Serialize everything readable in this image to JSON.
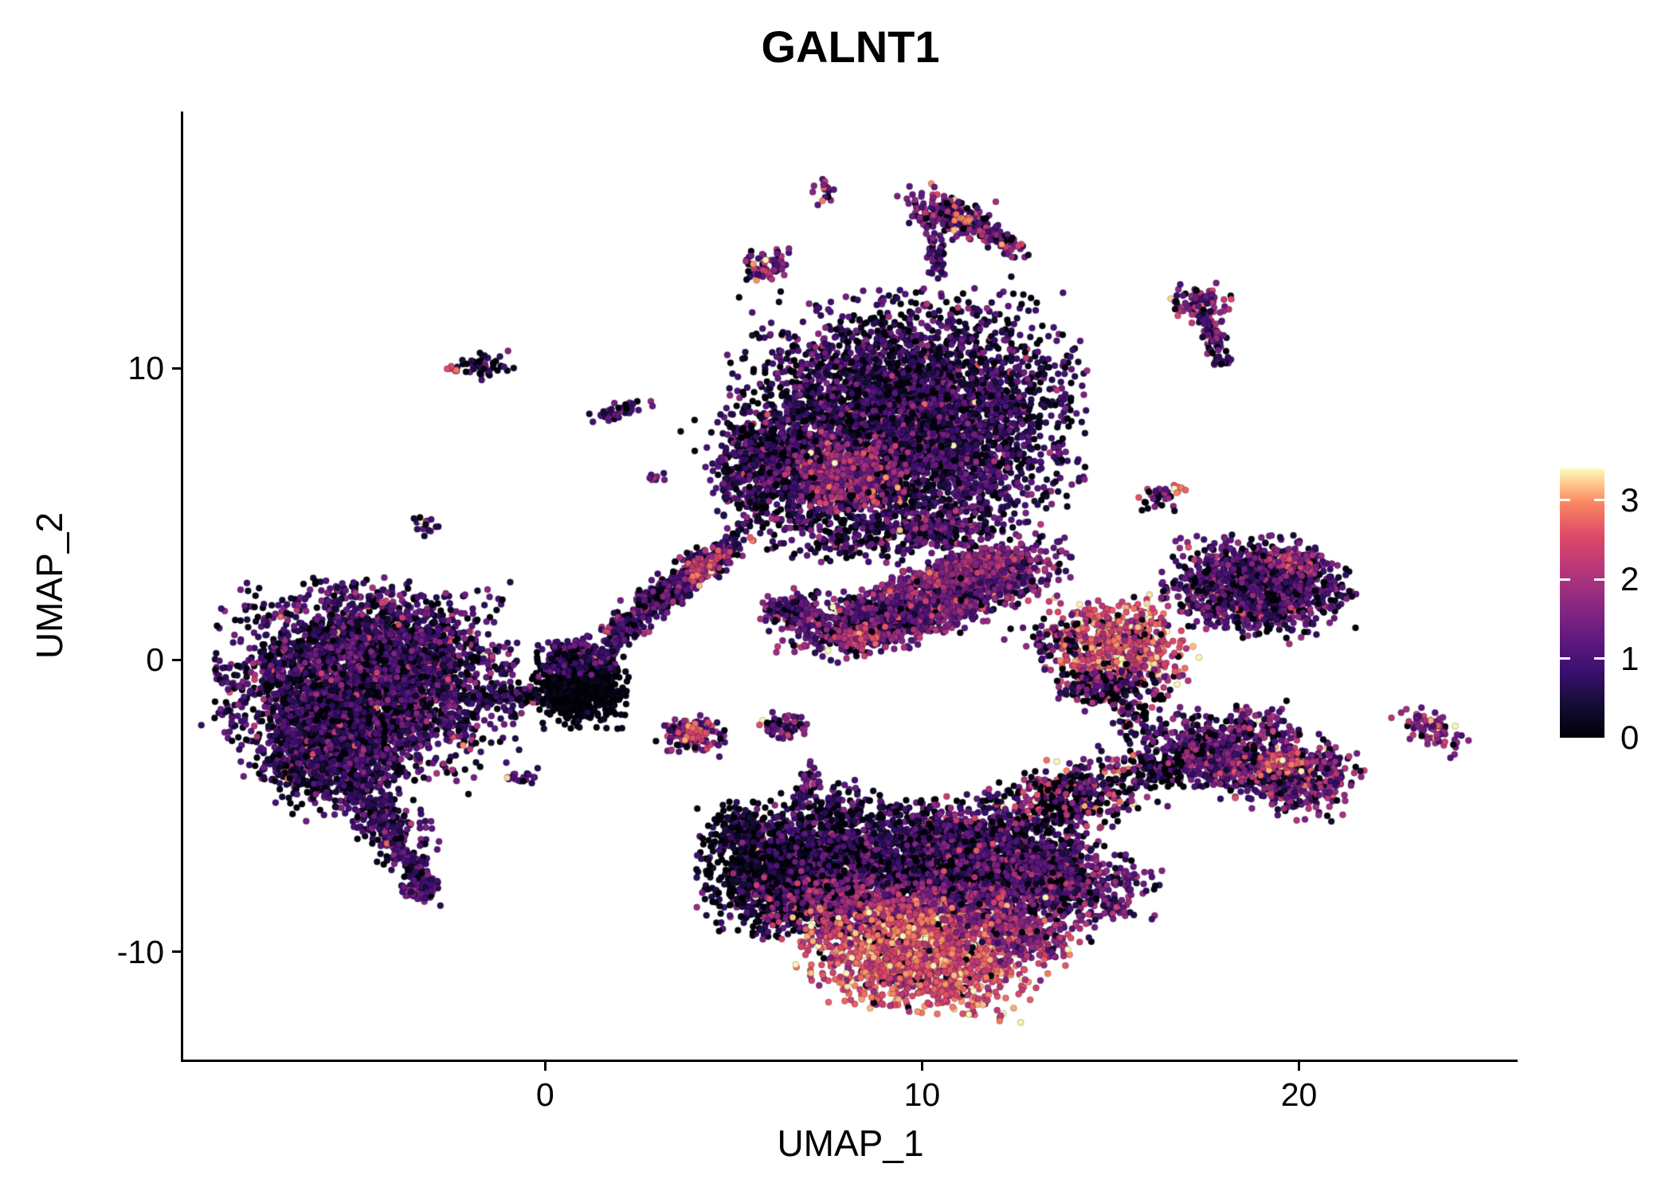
{
  "chart_data": {
    "type": "scatter",
    "title": "GALNT1",
    "xlabel": "UMAP_1",
    "ylabel": "UMAP_2",
    "xlim": [
      -9.6,
      25.8
    ],
    "ylim": [
      -13.7,
      18.8
    ],
    "grid": false,
    "background": "#ffffff",
    "axis_color": "#000000",
    "point_radius_px": 4,
    "point_stroke_color": "rgba(0,0,0,0.25)",
    "x_ticks": [
      {
        "value": 0,
        "label": "0"
      },
      {
        "value": 10,
        "label": "10"
      },
      {
        "value": 20,
        "label": "20"
      }
    ],
    "y_ticks": [
      {
        "value": 10,
        "label": "10"
      },
      {
        "value": 0,
        "label": "0"
      },
      {
        "value": -10,
        "label": "-10"
      }
    ],
    "color_scale": {
      "name": "magma",
      "min": 0,
      "max": 3.4,
      "legend_position": "right",
      "legend_ticks": [
        {
          "value": 3,
          "label": "3"
        },
        {
          "value": 2,
          "label": "2"
        },
        {
          "value": 1,
          "label": "1"
        },
        {
          "value": 0,
          "label": "0"
        }
      ],
      "stops": [
        {
          "t": 0,
          "color": "#000004"
        },
        {
          "t": 0.125,
          "color": "#140e36"
        },
        {
          "t": 0.25,
          "color": "#3b0f70"
        },
        {
          "t": 0.375,
          "color": "#641a80"
        },
        {
          "t": 0.5,
          "color": "#8c2981"
        },
        {
          "t": 0.625,
          "color": "#b73779"
        },
        {
          "t": 0.75,
          "color": "#de4968"
        },
        {
          "t": 0.875,
          "color": "#fb8861"
        },
        {
          "t": 0.9375,
          "color": "#fec287"
        },
        {
          "t": 1,
          "color": "#fcfdbf"
        }
      ]
    },
    "outlier_frac": 0.018,
    "seed": 11,
    "clusters": [
      {
        "name": "left-main",
        "cx": -4.7,
        "cy": -0.7,
        "rx": 1.7,
        "ry": 1.5,
        "rot": 0,
        "n": 3600,
        "em": 0.95,
        "esd": 0.5,
        "dark": 0.18
      },
      {
        "name": "left-lower-lobe",
        "cx": -5.6,
        "cy": -3.1,
        "rx": 1.0,
        "ry": 0.8,
        "rot": 40,
        "n": 850,
        "em": 0.9,
        "esd": 0.45,
        "dark": 0.2
      },
      {
        "name": "left-tail-upper",
        "cx": -4.5,
        "cy": -5.2,
        "rx": 0.45,
        "ry": 0.95,
        "rot": 32,
        "n": 280,
        "em": 0.85,
        "esd": 0.4,
        "dark": 0.15
      },
      {
        "name": "left-tail-lower",
        "cx": -3.6,
        "cy": -6.9,
        "rx": 0.2,
        "ry": 0.75,
        "rot": 22,
        "n": 120,
        "em": 0.9,
        "esd": 0.4,
        "dark": 0.1
      },
      {
        "name": "left-tail-end",
        "cx": -3.25,
        "cy": -7.8,
        "rx": 0.28,
        "ry": 0.22,
        "rot": 0,
        "n": 60,
        "em": 1.0,
        "esd": 0.4,
        "dark": 0.1
      },
      {
        "name": "left-to-dark-bridge",
        "cx": -0.9,
        "cy": -1.2,
        "rx": 0.7,
        "ry": 0.18,
        "rot": 8,
        "n": 90,
        "em": 0.8,
        "esd": 0.4,
        "dark": 0.25
      },
      {
        "name": "dark-blob",
        "cx": 0.95,
        "cy": -0.95,
        "rx": 0.55,
        "ry": 0.6,
        "rot": 0,
        "n": 750,
        "em": 0.12,
        "esd": 0.18,
        "dark": 0.5
      },
      {
        "name": "dark-blob-top-fringe",
        "cx": 0.75,
        "cy": 0.15,
        "rx": 0.5,
        "ry": 0.28,
        "rot": 10,
        "n": 160,
        "em": 0.9,
        "esd": 0.45,
        "dark": 0.2
      },
      {
        "name": "dash-left-small",
        "cx": -6.7,
        "cy": -4.0,
        "rx": 0.3,
        "ry": 0.12,
        "rot": -10,
        "n": 22,
        "em": 0.8,
        "esd": 0.4,
        "dark": 0.2
      },
      {
        "name": "small-blob-a",
        "cx": -0.6,
        "cy": -4.0,
        "rx": 0.2,
        "ry": 0.17,
        "rot": 0,
        "n": 20,
        "em": 0.9,
        "esd": 0.5,
        "dark": 0.1
      },
      {
        "name": "top-main",
        "cx": 9.6,
        "cy": 8.2,
        "rx": 2.0,
        "ry": 1.9,
        "rot": 0,
        "n": 4300,
        "em": 0.85,
        "esd": 0.45,
        "dark": 0.22
      },
      {
        "name": "top-left-lobe",
        "cx": 6.3,
        "cy": 6.6,
        "rx": 0.9,
        "ry": 1.0,
        "rot": 20,
        "n": 850,
        "em": 0.9,
        "esd": 0.45,
        "dark": 0.18
      },
      {
        "name": "top-hotspot",
        "cx": 8.0,
        "cy": 6.4,
        "rx": 0.7,
        "ry": 0.55,
        "rot": 0,
        "n": 420,
        "em": 1.8,
        "esd": 0.5,
        "dark": 0.05
      },
      {
        "name": "top-bottom-fringe",
        "cx": 8.8,
        "cy": 4.4,
        "rx": 1.3,
        "ry": 0.5,
        "rot": 5,
        "n": 240,
        "em": 0.9,
        "esd": 0.5,
        "dark": 0.25
      },
      {
        "name": "tiny-top",
        "cx": 7.4,
        "cy": 16.2,
        "rx": 0.18,
        "ry": 0.26,
        "rot": 0,
        "n": 18,
        "em": 1.5,
        "esd": 0.6,
        "dark": 0.05
      },
      {
        "name": "hook-main",
        "cx": 10.6,
        "cy": 15.3,
        "rx": 0.62,
        "ry": 0.35,
        "rot": -18,
        "n": 170,
        "em": 1.3,
        "esd": 0.6,
        "dark": 0.1
      },
      {
        "name": "hook-arm",
        "cx": 11.95,
        "cy": 14.45,
        "rx": 0.5,
        "ry": 0.17,
        "rot": -33,
        "n": 80,
        "em": 1.5,
        "esd": 0.6,
        "dark": 0.06
      },
      {
        "name": "hook-tail",
        "cx": 10.35,
        "cy": 13.95,
        "rx": 0.14,
        "ry": 0.5,
        "rot": 10,
        "n": 50,
        "em": 1.1,
        "esd": 0.5,
        "dark": 0.1
      },
      {
        "name": "hook-bright-dot",
        "cx": 11.1,
        "cy": 15.05,
        "rx": 0.12,
        "ry": 0.12,
        "rot": 0,
        "n": 12,
        "em": 3.0,
        "esd": 0.25,
        "dark": 0
      },
      {
        "name": "blob-5-13",
        "cx": 5.9,
        "cy": 13.6,
        "rx": 0.3,
        "ry": 0.27,
        "rot": 0,
        "n": 75,
        "em": 1.6,
        "esd": 0.5,
        "dark": 0.05
      },
      {
        "name": "ne-small-top",
        "cx": 17.35,
        "cy": 12.25,
        "rx": 0.36,
        "ry": 0.3,
        "rot": 0,
        "n": 95,
        "em": 1.4,
        "esd": 0.6,
        "dark": 0.08
      },
      {
        "name": "ne-small-streak",
        "cx": 17.75,
        "cy": 11.0,
        "rx": 0.15,
        "ry": 0.5,
        "rot": 15,
        "n": 55,
        "em": 1.3,
        "esd": 0.6,
        "dark": 0.08
      },
      {
        "name": "ne-small-dot",
        "cx": 17.9,
        "cy": 10.2,
        "rx": 0.15,
        "ry": 0.13,
        "rot": 0,
        "n": 14,
        "em": 1.0,
        "esd": 0.5,
        "dark": 0.1
      },
      {
        "name": "nw-small",
        "cx": -1.6,
        "cy": 10.1,
        "rx": 0.36,
        "ry": 0.22,
        "rot": 5,
        "n": 48,
        "em": 1.0,
        "esd": 0.5,
        "dark": 0.15
      },
      {
        "name": "nw-small-bright-dot",
        "cx": -2.45,
        "cy": 10.0,
        "rx": 0.1,
        "ry": 0.08,
        "rot": 0,
        "n": 6,
        "em": 2.4,
        "esd": 0.3,
        "dark": 0
      },
      {
        "name": "small-streak-2-8",
        "cx": 2.0,
        "cy": 8.5,
        "rx": 0.42,
        "ry": 0.15,
        "rot": 28,
        "n": 36,
        "em": 0.9,
        "esd": 0.4,
        "dark": 0.2
      },
      {
        "name": "tiny-neg3-4",
        "cx": -3.2,
        "cy": 4.6,
        "rx": 0.22,
        "ry": 0.15,
        "rot": -15,
        "n": 16,
        "em": 0.8,
        "esd": 0.4,
        "dark": 0.15
      },
      {
        "name": "pair-16-5",
        "cx": 16.3,
        "cy": 5.55,
        "rx": 0.26,
        "ry": 0.2,
        "rot": 0,
        "n": 32,
        "em": 1.2,
        "esd": 0.7,
        "dark": 0.12
      },
      {
        "name": "pair-16-5-bright",
        "cx": 16.78,
        "cy": 5.85,
        "rx": 0.1,
        "ry": 0.09,
        "rot": 0,
        "n": 8,
        "em": 3.0,
        "esd": 0.25,
        "dark": 0
      },
      {
        "name": "mid-sparse-dots",
        "cx": 2.9,
        "cy": 6.3,
        "rx": 0.18,
        "ry": 0.14,
        "rot": 0,
        "n": 8,
        "em": 1.2,
        "esd": 0.5,
        "dark": 0.1
      },
      {
        "name": "mid-streak",
        "cx": 3.6,
        "cy": 2.7,
        "rx": 1.15,
        "ry": 0.27,
        "rot": 44,
        "n": 430,
        "em": 1.0,
        "esd": 0.5,
        "dark": 0.15
      },
      {
        "name": "mid-streak-hotspot",
        "cx": 4.3,
        "cy": 3.25,
        "rx": 0.35,
        "ry": 0.18,
        "rot": 44,
        "n": 80,
        "em": 2.2,
        "esd": 0.5,
        "dark": 0.02
      },
      {
        "name": "mid-streak-foot",
        "cx": 2.1,
        "cy": 1.1,
        "rx": 0.3,
        "ry": 0.24,
        "rot": 0,
        "n": 70,
        "em": 1.0,
        "esd": 0.5,
        "dark": 0.12
      },
      {
        "name": "streak-to-blob-trail",
        "cx": 1.75,
        "cy": 0.4,
        "rx": 0.13,
        "ry": 0.45,
        "rot": -32,
        "n": 55,
        "em": 0.9,
        "esd": 0.5,
        "dark": 0.2
      },
      {
        "name": "band-left",
        "cx": 8.9,
        "cy": 1.4,
        "rx": 1.2,
        "ry": 0.5,
        "rot": 14,
        "n": 850,
        "em": 1.3,
        "esd": 0.5,
        "dark": 0.12
      },
      {
        "name": "band-right",
        "cx": 11.3,
        "cy": 2.55,
        "rx": 1.2,
        "ry": 0.5,
        "rot": 24,
        "n": 850,
        "em": 1.4,
        "esd": 0.5,
        "dark": 0.1
      },
      {
        "name": "band-top-strip",
        "cx": 11.0,
        "cy": 3.1,
        "rx": 0.9,
        "ry": 0.24,
        "rot": 20,
        "n": 230,
        "em": 1.8,
        "esd": 0.45,
        "dark": 0.04
      },
      {
        "name": "band-hotspot",
        "cx": 8.35,
        "cy": 0.8,
        "rx": 0.3,
        "ry": 0.2,
        "rot": 0,
        "n": 60,
        "em": 2.3,
        "esd": 0.4,
        "dark": 0.02
      },
      {
        "name": "band-upper-blob",
        "cx": 10.6,
        "cy": 4.45,
        "rx": 0.5,
        "ry": 0.3,
        "rot": 0,
        "n": 120,
        "em": 1.1,
        "esd": 0.5,
        "dark": 0.15
      },
      {
        "name": "band-west-blob",
        "cx": 6.6,
        "cy": 1.75,
        "rx": 0.4,
        "ry": 0.33,
        "rot": 0,
        "n": 140,
        "em": 1.2,
        "esd": 0.5,
        "dark": 0.12
      },
      {
        "name": "blob-4-neg2",
        "cx": 3.9,
        "cy": -2.6,
        "rx": 0.4,
        "ry": 0.3,
        "rot": 0,
        "n": 110,
        "em": 1.5,
        "esd": 0.6,
        "dark": 0.06
      },
      {
        "name": "blob-4-neg2-hot",
        "cx": 3.95,
        "cy": -2.5,
        "rx": 0.18,
        "ry": 0.13,
        "rot": 0,
        "n": 30,
        "em": 2.6,
        "esd": 0.35,
        "dark": 0
      },
      {
        "name": "blob-6-neg2",
        "cx": 6.4,
        "cy": -2.3,
        "rx": 0.3,
        "ry": 0.24,
        "rot": 0,
        "n": 60,
        "em": 1.3,
        "esd": 0.6,
        "dark": 0.1
      },
      {
        "name": "streak-7-neg4",
        "cx": 7.0,
        "cy": -4.1,
        "rx": 0.12,
        "ry": 0.4,
        "rot": 0,
        "n": 36,
        "em": 1.2,
        "esd": 0.6,
        "dark": 0.08
      },
      {
        "name": "bottom-left-lobe",
        "cx": 6.4,
        "cy": -7.4,
        "rx": 1.0,
        "ry": 0.9,
        "rot": 0,
        "n": 1350,
        "em": 0.6,
        "esd": 0.5,
        "dark": 0.35
      },
      {
        "name": "bottom-left-scatter",
        "cx": 5.3,
        "cy": -6.0,
        "rx": 0.6,
        "ry": 0.5,
        "rot": 0,
        "n": 190,
        "em": 0.55,
        "esd": 0.4,
        "dark": 0.4
      },
      {
        "name": "bottom-main",
        "cx": 10.4,
        "cy": -6.9,
        "rx": 1.7,
        "ry": 0.95,
        "rot": 4,
        "n": 2400,
        "em": 0.95,
        "esd": 0.5,
        "dark": 0.2
      },
      {
        "name": "bottom-mid-band",
        "cx": 9.3,
        "cy": -8.7,
        "rx": 1.6,
        "ry": 0.6,
        "rot": -2,
        "n": 850,
        "em": 1.7,
        "esd": 0.5,
        "dark": 0.08
      },
      {
        "name": "bottom-bright",
        "cx": 9.9,
        "cy": -10.2,
        "rx": 1.35,
        "ry": 0.8,
        "rot": -8,
        "n": 1500,
        "em": 2.6,
        "esd": 0.45,
        "dark": 0.04
      },
      {
        "name": "bottom-right-ext",
        "cx": 13.3,
        "cy": -7.6,
        "rx": 1.3,
        "ry": 0.7,
        "rot": -10,
        "n": 850,
        "em": 1.2,
        "esd": 0.6,
        "dark": 0.15
      },
      {
        "name": "bottom-right-lower",
        "cx": 12.6,
        "cy": -9.4,
        "rx": 0.8,
        "ry": 0.5,
        "rot": -28,
        "n": 300,
        "em": 1.8,
        "esd": 0.55,
        "dark": 0.06
      },
      {
        "name": "bottom-upper-arm",
        "cx": 13.9,
        "cy": -4.7,
        "rx": 1.25,
        "ry": 0.6,
        "rot": 22,
        "n": 480,
        "em": 1.3,
        "esd": 0.9,
        "dark": 0.3
      },
      {
        "name": "bottom-above-sparse",
        "cx": 7.6,
        "cy": -5.3,
        "rx": 0.8,
        "ry": 0.5,
        "rot": 0,
        "n": 190,
        "em": 0.8,
        "esd": 0.5,
        "dark": 0.25
      },
      {
        "name": "right-bright",
        "cx": 15.2,
        "cy": 0.45,
        "rx": 0.85,
        "ry": 0.75,
        "rot": 0,
        "n": 680,
        "em": 2.5,
        "esd": 0.55,
        "dark": 0.05
      },
      {
        "name": "right-bright-fringe",
        "cx": 15.0,
        "cy": -0.95,
        "rx": 0.7,
        "ry": 0.35,
        "rot": 0,
        "n": 190,
        "em": 1.2,
        "esd": 0.7,
        "dark": 0.3
      },
      {
        "name": "right-bright-tail",
        "cx": 15.65,
        "cy": -2.1,
        "rx": 0.25,
        "ry": 0.5,
        "rot": 15,
        "n": 60,
        "em": 1.0,
        "esd": 0.6,
        "dark": 0.3
      },
      {
        "name": "mid-gap-sparse",
        "cx": 13.3,
        "cy": 0.6,
        "rx": 0.5,
        "ry": 0.4,
        "rot": 0,
        "n": 55,
        "em": 1.0,
        "esd": 0.6,
        "dark": 0.3
      },
      {
        "name": "right-top",
        "cx": 18.9,
        "cy": 2.5,
        "rx": 1.1,
        "ry": 0.75,
        "rot": 0,
        "n": 1250,
        "em": 1.1,
        "esd": 0.5,
        "dark": 0.15
      },
      {
        "name": "right-top-hot",
        "cx": 19.9,
        "cy": 3.3,
        "rx": 0.3,
        "ry": 0.2,
        "rot": 0,
        "n": 55,
        "em": 2.1,
        "esd": 0.4,
        "dark": 0
      },
      {
        "name": "right-bottom-a",
        "cx": 17.6,
        "cy": -3.2,
        "rx": 0.75,
        "ry": 0.6,
        "rot": -20,
        "n": 480,
        "em": 1.2,
        "esd": 0.5,
        "dark": 0.12
      },
      {
        "name": "right-bottom-b",
        "cx": 19.8,
        "cy": -3.9,
        "rx": 0.8,
        "ry": 0.65,
        "rot": -15,
        "n": 520,
        "em": 1.3,
        "esd": 0.6,
        "dark": 0.12
      },
      {
        "name": "right-bottom-hot",
        "cx": 19.55,
        "cy": -3.5,
        "rx": 0.3,
        "ry": 0.2,
        "rot": 0,
        "n": 70,
        "em": 2.5,
        "esd": 0.4,
        "dark": 0
      },
      {
        "name": "right-bottom-bridge",
        "cx": 18.9,
        "cy": -2.3,
        "rx": 0.4,
        "ry": 0.4,
        "rot": 0,
        "n": 80,
        "em": 1.2,
        "esd": 0.6,
        "dark": 0.2
      },
      {
        "name": "right-bottom-west",
        "cx": 16.5,
        "cy": -3.7,
        "rx": 0.5,
        "ry": 0.3,
        "rot": 10,
        "n": 100,
        "em": 1.0,
        "esd": 0.8,
        "dark": 0.3
      },
      {
        "name": "far-right-streak",
        "cx": 23.4,
        "cy": -2.3,
        "rx": 0.5,
        "ry": 0.28,
        "rot": -32,
        "n": 70,
        "em": 1.7,
        "esd": 0.5,
        "dark": 0.06
      }
    ]
  }
}
